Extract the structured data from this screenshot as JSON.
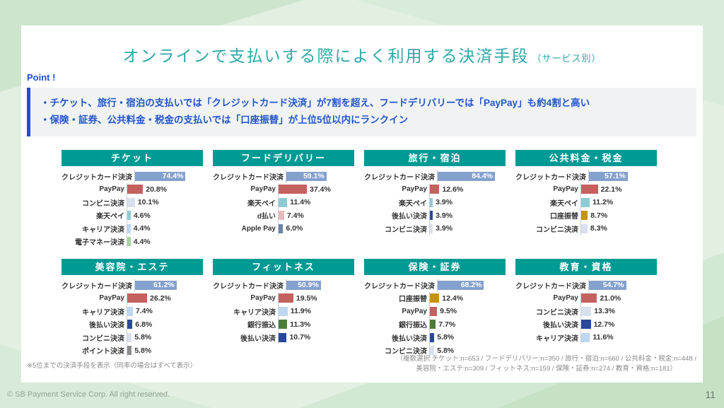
{
  "slide": {
    "title": "オンラインで支払いする際によく利用する決済手段",
    "title_suffix": "（サービス別）",
    "point_label": "Point !",
    "point_lines": [
      "・チケット、旅行・宿泊の支払いでは「クレジットカード決済」が7割を超え、フードデリバリーでは「PayPay」も約4割と高い",
      "・保険・証券、公共料金・税金の支払いでは「口座振替」が上位5位以内にランクイン"
    ],
    "footnote_left": "※5位までの決済手段を表示（同率の場合はすべて表示）",
    "footnote_right_line1": "（複数選択 チケット:n=653 / フードデリバリー:n=350 / 旅行・宿泊:n=660 / 公共料金・税金:n=448 /",
    "footnote_right_line2": "美容院・エステ:n=309 / フィットネス:n=159 / 保険・証券:n=274 / 教育・資格:n=181）",
    "footer_copyright": "© SB Payment Service Corp. All right reserved.",
    "page_number": "11"
  },
  "colors": {
    "header_teal": "#009a94",
    "title_teal": "#2ea7a7",
    "point_blue": "#1d4fd8",
    "point_text_blue": "#2156c8",
    "point_box_bg": "#f0f2f4",
    "slide_bg_green": "#e2f0e2"
  },
  "method_colors": {
    "クレジットカード決済": "#84a0cd",
    "PayPay": "#c3615e",
    "コンビニ決済": "#d9e0ed",
    "楽天ペイ": "#8ecbd4",
    "キャリア決済": "#bdd7f0",
    "電子マネー決済": "#a6d49f",
    "d払い": "#e9babc",
    "Apple Pay": "#6c84a6",
    "後払い決済": "#27489b",
    "口座振替": "#c49310",
    "銀行振込": "#4c7d38",
    "ポイント決済": "#8c8c8c"
  },
  "chart_data": [
    {
      "type": "bar",
      "title": "チケット",
      "xlim": [
        0,
        100
      ],
      "items": [
        {
          "label": "クレジットカード決済",
          "value": 74.4
        },
        {
          "label": "PayPay",
          "value": 20.8
        },
        {
          "label": "コンビニ決済",
          "value": 10.1
        },
        {
          "label": "楽天ペイ",
          "value": 4.6
        },
        {
          "label": "キャリア決済",
          "value": 4.4
        },
        {
          "label": "電子マネー決済",
          "value": 4.4
        }
      ]
    },
    {
      "type": "bar",
      "title": "フードデリバリー",
      "xlim": [
        0,
        100
      ],
      "items": [
        {
          "label": "クレジットカード決済",
          "value": 59.1
        },
        {
          "label": "PayPay",
          "value": 37.4
        },
        {
          "label": "楽天ペイ",
          "value": 11.4
        },
        {
          "label": "d払い",
          "value": 7.4
        },
        {
          "label": "Apple Pay",
          "value": 6.0
        }
      ]
    },
    {
      "type": "bar",
      "title": "旅行・宿泊",
      "xlim": [
        0,
        100
      ],
      "items": [
        {
          "label": "クレジットカード決済",
          "value": 84.4
        },
        {
          "label": "PayPay",
          "value": 12.6
        },
        {
          "label": "楽天ペイ",
          "value": 3.9
        },
        {
          "label": "後払い決済",
          "value": 3.9
        },
        {
          "label": "コンビニ決済",
          "value": 3.9
        }
      ]
    },
    {
      "type": "bar",
      "title": "公共料金・税金",
      "xlim": [
        0,
        100
      ],
      "items": [
        {
          "label": "クレジットカード決済",
          "value": 57.1
        },
        {
          "label": "PayPay",
          "value": 22.1
        },
        {
          "label": "楽天ペイ",
          "value": 11.2
        },
        {
          "label": "口座振替",
          "value": 8.7
        },
        {
          "label": "コンビニ決済",
          "value": 8.3
        }
      ]
    },
    {
      "type": "bar",
      "title": "美容院・エステ",
      "xlim": [
        0,
        100
      ],
      "items": [
        {
          "label": "クレジットカード決済",
          "value": 61.2
        },
        {
          "label": "PayPay",
          "value": 26.2
        },
        {
          "label": "キャリア決済",
          "value": 7.4
        },
        {
          "label": "後払い決済",
          "value": 6.8
        },
        {
          "label": "コンビニ決済",
          "value": 5.8
        },
        {
          "label": "ポイント決済",
          "value": 5.8
        }
      ]
    },
    {
      "type": "bar",
      "title": "フィットネス",
      "xlim": [
        0,
        100
      ],
      "items": [
        {
          "label": "クレジットカード決済",
          "value": 50.9
        },
        {
          "label": "PayPay",
          "value": 19.5
        },
        {
          "label": "キャリア決済",
          "value": 11.9
        },
        {
          "label": "銀行振込",
          "value": 11.3
        },
        {
          "label": "後払い決済",
          "value": 10.7
        }
      ]
    },
    {
      "type": "bar",
      "title": "保険・証券",
      "xlim": [
        0,
        100
      ],
      "items": [
        {
          "label": "クレジットカード決済",
          "value": 68.2
        },
        {
          "label": "口座振替",
          "value": 12.4
        },
        {
          "label": "PayPay",
          "value": 9.5
        },
        {
          "label": "銀行振込",
          "value": 7.7
        },
        {
          "label": "後払い決済",
          "value": 5.8
        },
        {
          "label": "コンビニ決済",
          "value": 5.8
        }
      ]
    },
    {
      "type": "bar",
      "title": "教育・資格",
      "xlim": [
        0,
        100
      ],
      "items": [
        {
          "label": "クレジットカード決済",
          "value": 54.7
        },
        {
          "label": "PayPay",
          "value": 21.0
        },
        {
          "label": "コンビニ決済",
          "value": 13.3
        },
        {
          "label": "後払い決済",
          "value": 12.7
        },
        {
          "label": "キャリア決済",
          "value": 11.6
        }
      ]
    }
  ]
}
